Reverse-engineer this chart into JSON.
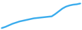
{
  "x": [
    0,
    1,
    2,
    3,
    4,
    5,
    6,
    7,
    8,
    9,
    10,
    11,
    12,
    13,
    14,
    15,
    16,
    17,
    18,
    19,
    20,
    21,
    22
  ],
  "y": [
    10,
    13,
    17,
    21,
    24,
    27,
    29,
    31,
    33,
    35,
    36,
    37,
    38,
    39,
    40,
    46,
    53,
    60,
    65,
    68,
    70,
    71,
    73
  ],
  "line_color": "#3aaced",
  "linewidth": 1.8,
  "background_color": "#ffffff",
  "ylim": [
    5,
    82
  ],
  "xlim": [
    -0.5,
    22.5
  ]
}
